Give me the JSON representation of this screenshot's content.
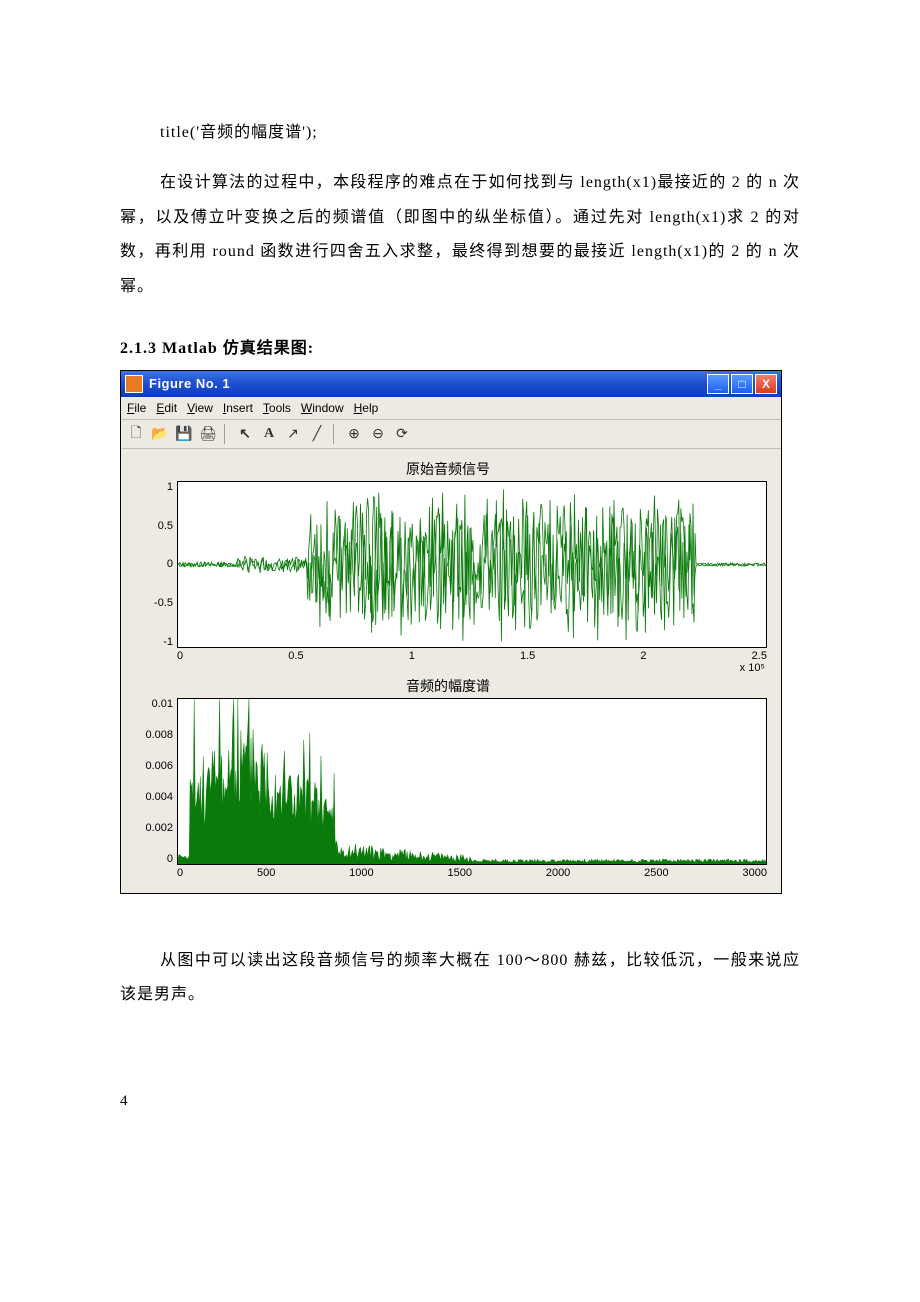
{
  "text": {
    "code_line": "title('音频的幅度谱');",
    "para1": "在设计算法的过程中，本段程序的难点在于如何找到与 length(x1)最接近的 2 的 n 次幂，以及傅立叶变换之后的频谱值（即图中的纵坐标值）。通过先对 length(x1)求 2 的对数，再利用 round 函数进行四舍五入求整，最终得到想要的最接近 length(x1)的 2 的 n 次幂。",
    "section_head": "2.1.3 Matlab 仿真结果图:",
    "para2": "从图中可以读出这段音频信号的频率大概在 100～800 赫兹，比较低沉，一般来说应该是男声。",
    "page_num": "4"
  },
  "figure": {
    "window_title": "Figure No. 1",
    "menus": [
      "File",
      "Edit",
      "View",
      "Insert",
      "Tools",
      "Window",
      "Help"
    ],
    "toolbar_icons": [
      "new",
      "open",
      "save",
      "print",
      "|",
      "arrow",
      "text",
      "diag",
      "line",
      "|",
      "zoom-in",
      "zoom-out",
      "rotate"
    ],
    "plot1": {
      "title": "原始音频信号",
      "yticks": [
        "1",
        "0.5",
        "0",
        "-0.5",
        "-1"
      ],
      "xticks": [
        "0",
        "0.5",
        "1",
        "1.5",
        "2",
        "2.5"
      ],
      "x_exponent": "x 10⁵",
      "ylim": [
        -1,
        1
      ],
      "xlim": [
        0,
        2.5
      ],
      "color": "#0a7a0a"
    },
    "plot2": {
      "title": "音频的幅度谱",
      "yticks": [
        "0.01",
        "0.008",
        "0.006",
        "0.004",
        "0.002",
        "0"
      ],
      "xticks": [
        "0",
        "500",
        "1000",
        "1500",
        "2000",
        "2500",
        "3000"
      ],
      "ylim": [
        0,
        0.01
      ],
      "xlim": [
        0,
        3000
      ],
      "color": "#0a7a0a"
    },
    "colors": {
      "titlebar_grad": [
        "#3a76e8",
        "#0a3ec0"
      ],
      "close_grad": [
        "#f08070",
        "#e03818"
      ],
      "panel_bg": "#eceae3",
      "axes_bg": "#ffffff",
      "line_color": "#0a7a0a"
    }
  }
}
